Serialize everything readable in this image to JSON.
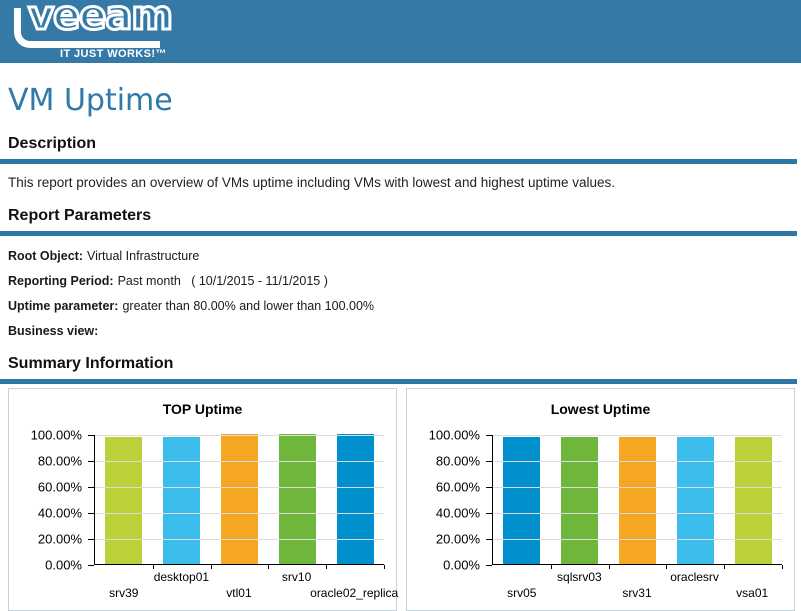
{
  "banner": {
    "logo_text": "veeam",
    "tagline": "IT JUST WORKS!™",
    "bg_color": "#3579A7"
  },
  "page": {
    "title": "VM Uptime",
    "accent_color": "#2E76A4"
  },
  "sections": {
    "description": {
      "heading": "Description",
      "body": "This report provides an overview of VMs uptime including VMs with lowest and highest uptime values."
    },
    "report_parameters": {
      "heading": "Report Parameters",
      "rows": [
        {
          "label": "Root Object:",
          "value": "Virtual Infrastructure"
        },
        {
          "label": "Reporting Period:",
          "value": "Past month   ( 10/1/2015 - 11/1/2015 )"
        },
        {
          "label": "Uptime parameter:",
          "value": "greater than 80.00% and lower than 100.00%"
        },
        {
          "label": "Business view:",
          "value": ""
        }
      ]
    },
    "summary": {
      "heading": "Summary Information"
    }
  },
  "chart_data": [
    {
      "type": "bar",
      "title": "TOP Uptime",
      "categories": [
        "srv39",
        "desktop01",
        "vtl01",
        "srv10",
        "oracle02_replica"
      ],
      "values": [
        98.0,
        98.0,
        99.8,
        99.8,
        100.0
      ],
      "bar_colors": [
        "#BCD139",
        "#3BBDEB",
        "#F5A623",
        "#6FB73C",
        "#0090CD"
      ],
      "xlabel": "",
      "ylabel": "",
      "ylim": [
        0,
        100
      ],
      "yticks": [
        0,
        20,
        40,
        60,
        80,
        100
      ],
      "ytick_labels": [
        "0.00%",
        "20.00%",
        "40.00%",
        "60.00%",
        "80.00%",
        "100.00%"
      ],
      "grid": true,
      "legend": "none"
    },
    {
      "type": "bar",
      "title": "Lowest Uptime",
      "categories": [
        "srv05",
        "sqlsrv03",
        "srv31",
        "oraclesrv",
        "vsa01"
      ],
      "values": [
        98.0,
        98.0,
        98.0,
        98.0,
        98.0
      ],
      "bar_colors": [
        "#0090CD",
        "#6FB73C",
        "#F5A623",
        "#3BBDEB",
        "#BCD139"
      ],
      "xlabel": "",
      "ylabel": "",
      "ylim": [
        0,
        100
      ],
      "yticks": [
        0,
        20,
        40,
        60,
        80,
        100
      ],
      "ytick_labels": [
        "0.00%",
        "20.00%",
        "40.00%",
        "60.00%",
        "80.00%",
        "100.00%"
      ],
      "grid": true,
      "legend": "none"
    }
  ]
}
